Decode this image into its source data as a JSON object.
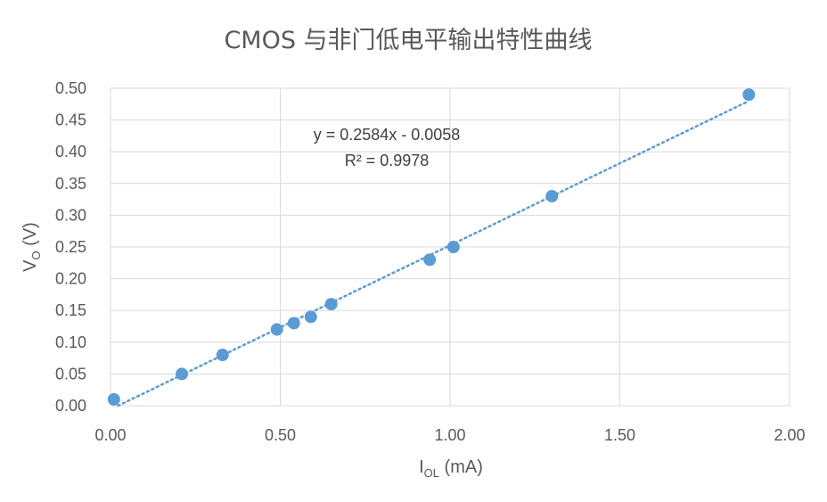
{
  "chart_data": {
    "type": "scatter",
    "title": "CMOS 与非门低电平输出特性曲线",
    "xlabel": {
      "main": "I",
      "sub": "OL",
      "unit": " (mA)"
    },
    "ylabel": {
      "main": "V",
      "sub": "O",
      "unit": " (V)"
    },
    "xlim": [
      0,
      2
    ],
    "ylim": [
      0,
      0.5
    ],
    "x_ticks": [
      "0.00",
      "0.50",
      "1.00",
      "1.50",
      "2.00"
    ],
    "y_ticks": [
      "0.00",
      "0.05",
      "0.10",
      "0.15",
      "0.20",
      "0.25",
      "0.30",
      "0.35",
      "0.40",
      "0.45",
      "0.50"
    ],
    "grid": true,
    "series": [
      {
        "x": [
          0.01,
          0.21,
          0.33,
          0.49,
          0.54,
          0.59,
          0.65,
          0.94,
          1.01,
          1.3,
          1.88
        ],
        "y": [
          0.01,
          0.05,
          0.08,
          0.12,
          0.13,
          0.14,
          0.16,
          0.23,
          0.25,
          0.33,
          0.49
        ]
      }
    ],
    "trendline": {
      "type": "linear",
      "slope": 0.2584,
      "intercept": -0.0058,
      "equation": "y = 0.2584x - 0.0058",
      "r_squared": "R² = 0.9978"
    },
    "colors": {
      "series": "#5b9bd5",
      "grid": "#d9d9d9",
      "text": "#595959"
    }
  }
}
